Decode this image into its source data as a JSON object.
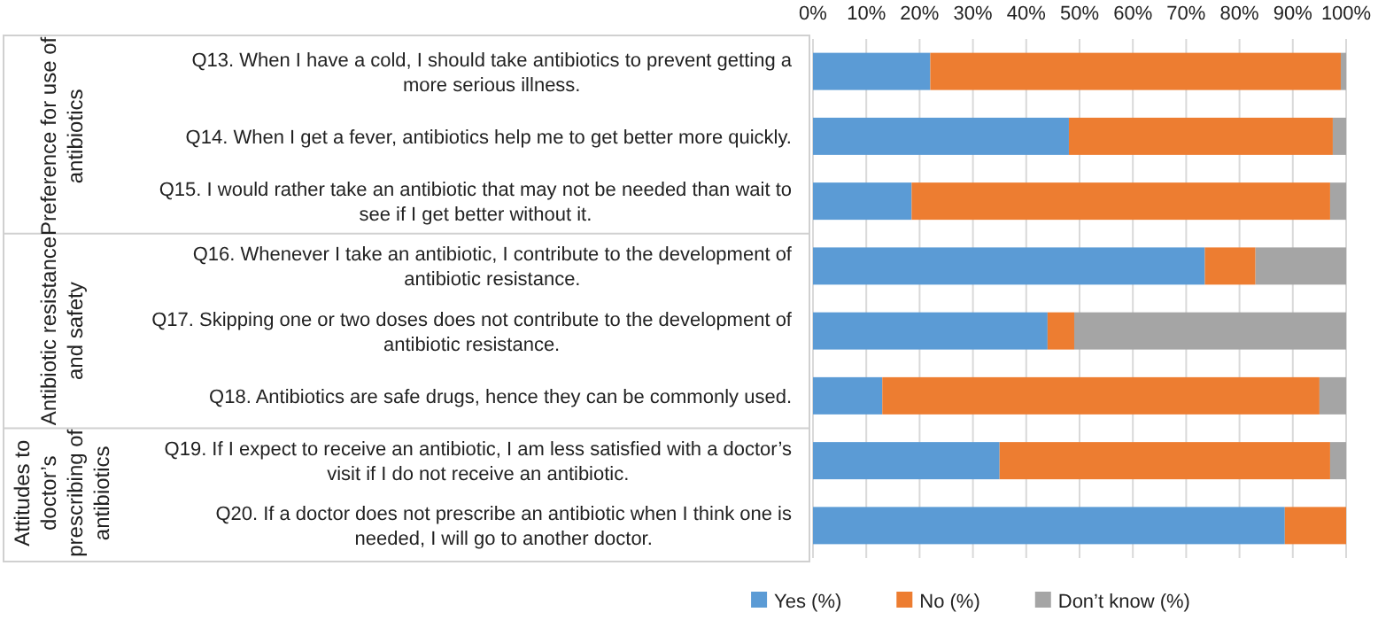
{
  "chart_data": {
    "type": "bar",
    "orientation": "horizontal",
    "stacked": true,
    "categories": [
      "Q13. When I have a cold, I should take antibiotics to prevent getting a more serious illness.",
      "Q14. When I get a fever, antibiotics help me to get better more quickly.",
      "Q15. I would rather take an antibiotic that may not be needed than wait to see if I get better without it.",
      "Q16. Whenever I take an antibiotic, I contribute to the development of antibiotic resistance.",
      "Q17. Skipping one or two doses does not contribute to the development of antibiotic resistance.",
      "Q18. Antibiotics are safe drugs, hence they can be commonly used.",
      "Q19. If I expect to receive an antibiotic, I am less satisfied with a doctor’s visit if I do not receive an antibiotic.",
      "Q20. If a doctor does not prescribe an antibiotic when I think one is needed, I will go to another doctor."
    ],
    "series": [
      {
        "name": "Yes (%)",
        "color": "#5b9bd5",
        "values": [
          22,
          48,
          18.5,
          73.5,
          44,
          13,
          35,
          88.5
        ]
      },
      {
        "name": "No (%)",
        "color": "#ed7d31",
        "values": [
          77,
          49.5,
          78.5,
          9.5,
          5,
          82,
          62,
          11.5
        ]
      },
      {
        "name": "Don’t know (%)",
        "color": "#a5a5a5",
        "values": [
          1,
          2.5,
          3,
          17,
          51,
          5,
          3,
          0
        ]
      }
    ],
    "xlim": [
      0,
      100
    ],
    "xticks": [
      {
        "value": 0,
        "label": "0%"
      },
      {
        "value": 10,
        "label": "10%"
      },
      {
        "value": 20,
        "label": "20%"
      },
      {
        "value": 30,
        "label": "30%"
      },
      {
        "value": 40,
        "label": "40%"
      },
      {
        "value": 50,
        "label": "50%"
      },
      {
        "value": 60,
        "label": "60%"
      },
      {
        "value": 70,
        "label": "70%"
      },
      {
        "value": 80,
        "label": "80%"
      },
      {
        "value": 90,
        "label": "90%"
      },
      {
        "value": 100,
        "label": "100%"
      }
    ],
    "grid": "x",
    "legend": "bottom",
    "annotations": [
      "Preference for use of antibiotics",
      "Antibiotic resistance and safety",
      "Attitudes to doctor’s prescribing of antibiotics"
    ]
  }
}
